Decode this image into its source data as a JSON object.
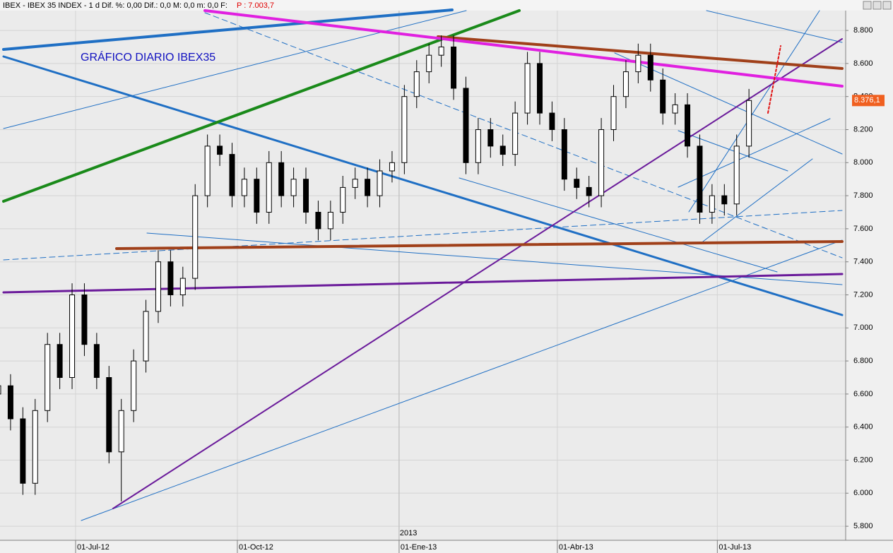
{
  "chart_data": {
    "type": "candlestick",
    "header": "IBEX - IBEX 35 INDEX - 1 d Dif. %: 0,00 Dif.: 0,0 M: 0,0 m: 0,0 F:",
    "header_price": "P : 7.003,7",
    "title": "GRÁFICO DIARIO IBEX35",
    "year_label": {
      "value": "2013-01-01",
      "label": "2013"
    },
    "last_price_label": "8.376,1",
    "x": [
      "2012-05-18",
      "2012-05-25",
      "2012-06-01",
      "2012-06-08",
      "2012-06-15",
      "2012-06-22",
      "2012-06-29",
      "2012-07-06",
      "2012-07-13",
      "2012-07-20",
      "2012-07-27",
      "2012-08-03",
      "2012-08-10",
      "2012-08-17",
      "2012-08-24",
      "2012-08-31",
      "2012-09-07",
      "2012-09-14",
      "2012-09-21",
      "2012-09-28",
      "2012-10-05",
      "2012-10-12",
      "2012-10-19",
      "2012-10-26",
      "2012-11-02",
      "2012-11-09",
      "2012-11-16",
      "2012-11-23",
      "2012-11-30",
      "2012-12-07",
      "2012-12-14",
      "2012-12-21",
      "2012-12-28",
      "2013-01-04",
      "2013-01-11",
      "2013-01-18",
      "2013-01-25",
      "2013-02-01",
      "2013-02-08",
      "2013-02-15",
      "2013-02-22",
      "2013-03-01",
      "2013-03-08",
      "2013-03-15",
      "2013-03-22",
      "2013-03-29",
      "2013-04-05",
      "2013-04-12",
      "2013-04-19",
      "2013-04-26",
      "2013-05-03",
      "2013-05-10",
      "2013-05-17",
      "2013-05-24",
      "2013-05-31",
      "2013-06-07",
      "2013-06-14",
      "2013-06-21",
      "2013-06-28",
      "2013-07-05",
      "2013-07-12",
      "2013-07-19"
    ],
    "open": [
      6600,
      6650,
      6450,
      6060,
      6500,
      6900,
      6700,
      7200,
      6900,
      6700,
      6250,
      6500,
      6800,
      7100,
      7400,
      7200,
      7300,
      7800,
      8100,
      8050,
      7800,
      7900,
      7700,
      8000,
      7800,
      7900,
      7700,
      7600,
      7700,
      7850,
      7900,
      7800,
      7950,
      8000,
      8400,
      8550,
      8650,
      8700,
      8450,
      8000,
      8200,
      8100,
      8050,
      8300,
      8600,
      8300,
      8200,
      7900,
      7850,
      7800,
      8200,
      8400,
      8550,
      8650,
      8500,
      8300,
      8350,
      8100,
      7700,
      7800,
      7750,
      8100
    ],
    "high": [
      6720,
      6720,
      6520,
      6570,
      6970,
      6970,
      7270,
      7270,
      6970,
      6770,
      6570,
      6870,
      7170,
      7470,
      7470,
      7370,
      7870,
      8170,
      8170,
      8120,
      7970,
      7970,
      8070,
      8070,
      7970,
      7970,
      7770,
      7770,
      7920,
      7970,
      7970,
      8020,
      8070,
      8470,
      8620,
      8720,
      8770,
      8770,
      8520,
      8270,
      8270,
      8170,
      8370,
      8670,
      8670,
      8370,
      8270,
      7970,
      7920,
      8270,
      8470,
      8620,
      8720,
      8720,
      8570,
      8420,
      8420,
      8170,
      7870,
      7870,
      8170,
      8446
    ],
    "low": [
      6530,
      6380,
      5990,
      5990,
      6430,
      6630,
      6630,
      6830,
      6630,
      6180,
      5950,
      6430,
      6730,
      7030,
      7130,
      7130,
      7230,
      7730,
      7980,
      7730,
      7730,
      7630,
      7630,
      7730,
      7730,
      7630,
      7530,
      7530,
      7630,
      7780,
      7730,
      7730,
      7880,
      7930,
      8330,
      8480,
      8580,
      8380,
      7930,
      7930,
      8030,
      7980,
      7980,
      8230,
      8230,
      8130,
      7830,
      7780,
      7730,
      7730,
      8130,
      8330,
      8480,
      8430,
      8230,
      8230,
      8030,
      7630,
      7630,
      7680,
      7680,
      8030
    ],
    "close": [
      6650,
      6450,
      6060,
      6500,
      6900,
      6700,
      7200,
      6900,
      6700,
      6250,
      6500,
      6800,
      7100,
      7400,
      7200,
      7300,
      7800,
      8100,
      8050,
      7800,
      7900,
      7700,
      8000,
      7800,
      7900,
      7700,
      7600,
      7700,
      7850,
      7900,
      7800,
      7950,
      8000,
      8400,
      8550,
      8650,
      8700,
      8450,
      8000,
      8200,
      8100,
      8050,
      8300,
      8600,
      8300,
      8200,
      7900,
      7850,
      7800,
      8200,
      8400,
      8550,
      8650,
      8500,
      8300,
      8350,
      8100,
      7700,
      7800,
      7750,
      8100,
      8376
    ],
    "up_color": "#ffffff",
    "down_color": "#000000",
    "xlim": [
      "2012-05-19",
      "2013-09-12"
    ],
    "xticks": [
      {
        "value": "2012-07-01",
        "label": "01-Jul-12"
      },
      {
        "value": "2012-10-01",
        "label": "01-Oct-12"
      },
      {
        "value": "2013-01-01",
        "label": "01-Ene-13"
      },
      {
        "value": "2013-04-01",
        "label": "01-Abr-13"
      },
      {
        "value": "2013-07-01",
        "label": "01-Jul-13"
      }
    ],
    "ylim": [
      5715,
      8920
    ],
    "yticks": [
      {
        "value": 5800,
        "label": "5.800"
      },
      {
        "value": 6000,
        "label": "6.000"
      },
      {
        "value": 6200,
        "label": "6.200"
      },
      {
        "value": 6400,
        "label": "6.400"
      },
      {
        "value": 6600,
        "label": "6.600"
      },
      {
        "value": 6800,
        "label": "6.800"
      },
      {
        "value": 7000,
        "label": "7.000"
      },
      {
        "value": 7200,
        "label": "7.200"
      },
      {
        "value": 7400,
        "label": "7.400"
      },
      {
        "value": 7600,
        "label": "7.600"
      },
      {
        "value": 7800,
        "label": "7.800"
      },
      {
        "value": 8000,
        "label": "8.000"
      },
      {
        "value": 8200,
        "label": "8.200"
      },
      {
        "value": 8400,
        "label": "8.400"
      },
      {
        "value": 8600,
        "label": "8.600"
      },
      {
        "value": 8800,
        "label": "8.800"
      }
    ],
    "grid": true
  }
}
